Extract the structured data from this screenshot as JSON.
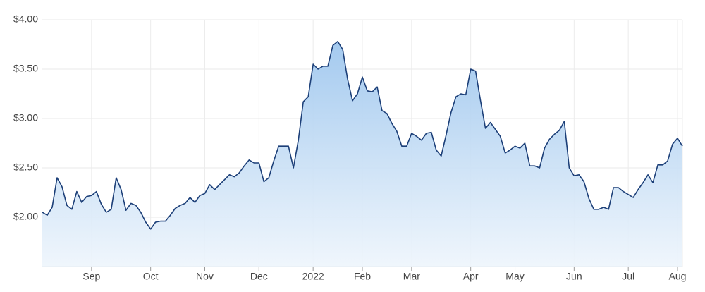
{
  "chart_data": {
    "type": "line",
    "categories": [
      null,
      null,
      null,
      null,
      null,
      null,
      null,
      null,
      null,
      null,
      "Sep",
      null,
      null,
      null,
      null,
      null,
      null,
      null,
      null,
      null,
      null,
      null,
      "Oct",
      null,
      null,
      null,
      null,
      null,
      null,
      null,
      null,
      null,
      null,
      "Nov",
      null,
      null,
      null,
      null,
      null,
      null,
      null,
      null,
      null,
      null,
      "Dec",
      null,
      null,
      null,
      null,
      null,
      null,
      null,
      null,
      null,
      null,
      "2022",
      null,
      null,
      null,
      null,
      null,
      null,
      null,
      null,
      null,
      "Feb",
      null,
      null,
      null,
      null,
      null,
      null,
      null,
      null,
      null,
      "Mar",
      null,
      null,
      null,
      null,
      null,
      null,
      null,
      null,
      null,
      null,
      null,
      "Apr",
      null,
      null,
      null,
      null,
      null,
      null,
      null,
      null,
      "May",
      null,
      null,
      null,
      null,
      null,
      null,
      null,
      null,
      null,
      null,
      null,
      "Jun",
      null,
      null,
      null,
      null,
      null,
      null,
      null,
      null,
      null,
      null,
      "Jul",
      null,
      null,
      null,
      null,
      null,
      null,
      null,
      null,
      null,
      "Aug",
      null
    ],
    "series": [
      {
        "color": "#1c3f78",
        "values": [
          2.05,
          2.02,
          2.1,
          2.4,
          2.31,
          2.12,
          2.08,
          2.26,
          2.15,
          2.21,
          2.22,
          2.26,
          2.13,
          2.05,
          2.08,
          2.4,
          2.28,
          2.07,
          2.14,
          2.12,
          2.05,
          1.95,
          1.88,
          1.95,
          1.96,
          1.96,
          2.02,
          2.09,
          2.12,
          2.14,
          2.2,
          2.15,
          2.22,
          2.24,
          2.33,
          2.28,
          2.33,
          2.38,
          2.43,
          2.41,
          2.45,
          2.52,
          2.58,
          2.55,
          2.55,
          2.36,
          2.4,
          2.57,
          2.72,
          2.72,
          2.72,
          2.5,
          2.78,
          3.17,
          3.22,
          3.55,
          3.5,
          3.53,
          3.53,
          3.74,
          3.78,
          3.7,
          3.4,
          3.18,
          3.25,
          3.42,
          3.28,
          3.27,
          3.32,
          3.08,
          3.05,
          2.95,
          2.87,
          2.72,
          2.72,
          2.85,
          2.82,
          2.78,
          2.85,
          2.86,
          2.68,
          2.62,
          2.83,
          3.06,
          3.22,
          3.25,
          3.24,
          3.5,
          3.48,
          3.18,
          2.9,
          2.96,
          2.89,
          2.82,
          2.65,
          2.68,
          2.72,
          2.7,
          2.75,
          2.52,
          2.52,
          2.5,
          2.7,
          2.79,
          2.84,
          2.88,
          2.97,
          2.5,
          2.42,
          2.43,
          2.36,
          2.19,
          2.08,
          2.08,
          2.1,
          2.08,
          2.3,
          2.3,
          2.26,
          2.23,
          2.2,
          2.28,
          2.35,
          2.43,
          2.35,
          2.53,
          2.53,
          2.57,
          2.74,
          2.8,
          2.72
        ]
      }
    ],
    "ylim": [
      1.5,
      4.0
    ],
    "yticks": [
      {
        "value": 2.0,
        "label": "$2.00"
      },
      {
        "value": 2.5,
        "label": "$2.50"
      },
      {
        "value": 3.0,
        "label": "$3.00"
      },
      {
        "value": 3.5,
        "label": "$3.50"
      },
      {
        "value": 4.0,
        "label": "$4.00"
      }
    ],
    "grid": true
  }
}
